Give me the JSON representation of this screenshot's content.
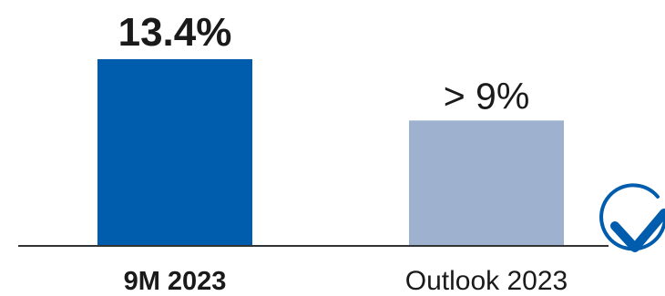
{
  "chart_data": {
    "type": "bar",
    "categories": [
      "9M 2023",
      "Outlook 2023"
    ],
    "values": [
      13.4,
      9
    ],
    "value_labels": [
      "13.4%",
      "> 9%"
    ],
    "ylim": [
      0,
      15
    ],
    "grid": false,
    "colors": {
      "bars": [
        "#005CAC",
        "#9EB1CF"
      ],
      "axis": "#333333",
      "label_text": "#1a1a1a",
      "check": "#005CAC"
    },
    "icons": {
      "status": "checkmark-circle-icon"
    }
  }
}
